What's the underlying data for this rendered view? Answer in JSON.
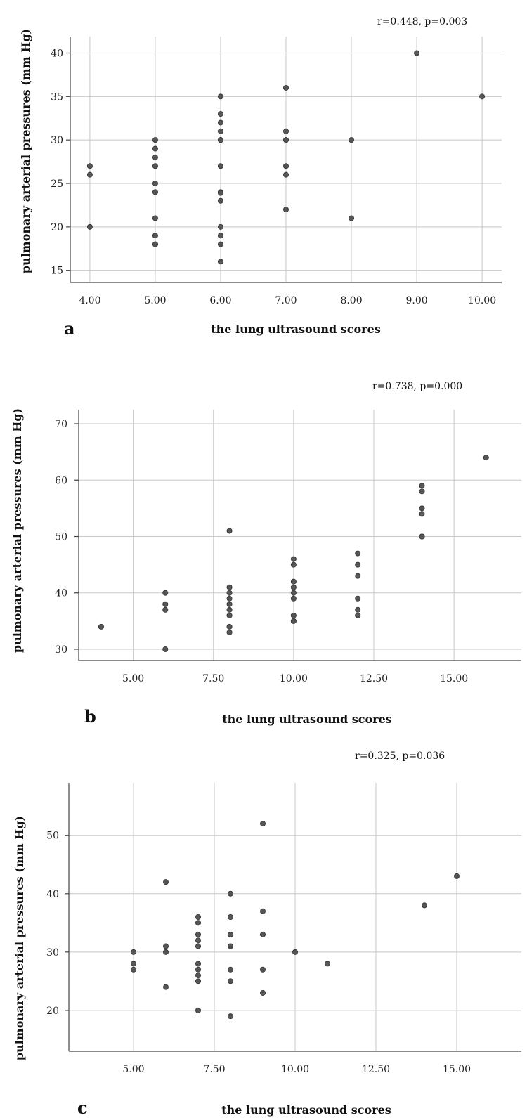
{
  "chart_data": [
    {
      "type": "scatter",
      "panel": "a",
      "annotation": "r=0.448, p=0.003",
      "xlabel": "the lung ultrasound scores",
      "ylabel": "pulmonary arterial pressures (mm Hg)",
      "xlim": [
        3.7,
        10.3
      ],
      "ylim": [
        13.6,
        41.9
      ],
      "xticks": [
        4,
        5,
        6,
        7,
        8,
        9,
        10
      ],
      "xtick_labels": [
        "4.00",
        "5.00",
        "6.00",
        "7.00",
        "8.00",
        "9.00",
        "10.00"
      ],
      "yticks": [
        15,
        20,
        25,
        30,
        35,
        40
      ],
      "ytick_labels": [
        "15",
        "20",
        "25",
        "30",
        "35",
        "40"
      ],
      "grid": true,
      "x": [
        4,
        4,
        4,
        5,
        5,
        5,
        5,
        5,
        5,
        5,
        5,
        5,
        5,
        6,
        6,
        6,
        6,
        6,
        6,
        6,
        6,
        6,
        6,
        6,
        6,
        6,
        6,
        7,
        7,
        7,
        7,
        7,
        7,
        7,
        8,
        8,
        9,
        10
      ],
      "y": [
        27,
        26,
        20,
        30,
        29,
        28,
        27,
        25,
        24,
        21,
        19,
        18,
        18,
        35,
        33,
        32,
        31,
        30,
        27,
        24,
        23.9,
        23,
        20,
        19,
        18,
        16,
        30,
        36,
        31,
        30,
        27,
        26,
        22,
        30,
        30,
        21,
        40,
        35
      ]
    },
    {
      "type": "scatter",
      "panel": "b",
      "annotation": "r=0.738, p=0.000",
      "xlabel": "the lung ultrasound scores",
      "ylabel": "pulmonary arterial pressures (mm Hg)",
      "xlim": [
        3.3,
        17.1
      ],
      "ylim": [
        28.0,
        72.5
      ],
      "xticks": [
        5,
        7.5,
        10,
        12.5,
        15
      ],
      "xtick_labels": [
        "5.00",
        "7.50",
        "10.00",
        "12.50",
        "15.00"
      ],
      "yticks": [
        30,
        40,
        50,
        60,
        70
      ],
      "ytick_labels": [
        "30",
        "40",
        "50",
        "60",
        "70"
      ],
      "grid": true,
      "x": [
        4,
        6,
        6,
        6,
        6,
        8,
        8,
        8,
        8,
        8,
        8,
        8,
        8,
        8,
        10,
        10,
        10,
        10,
        10,
        10,
        10,
        10,
        10,
        12,
        12,
        12,
        12,
        12,
        12,
        14,
        14,
        14,
        14,
        14,
        14,
        16
      ],
      "y": [
        34,
        40,
        38,
        37,
        30,
        51,
        41,
        40,
        39,
        38,
        37,
        36,
        34,
        33,
        46,
        45,
        42,
        41,
        40,
        39,
        36,
        35,
        35,
        47,
        45,
        43,
        39,
        37,
        36,
        59,
        58,
        55,
        54,
        50,
        50,
        64
      ]
    },
    {
      "type": "scatter",
      "panel": "c",
      "annotation": "r=0.325, p=0.036",
      "xlabel": "the lung ultrasound scores",
      "ylabel": "pulmonary arterial pressures (mm Hg)",
      "xlim": [
        3.0,
        17.0
      ],
      "ylim": [
        13.0,
        59.0
      ],
      "xticks": [
        5,
        7.5,
        10,
        12.5,
        15
      ],
      "xtick_labels": [
        "5.00",
        "7.50",
        "10.00",
        "12.50",
        "15.00"
      ],
      "yticks": [
        20,
        30,
        40,
        50
      ],
      "ytick_labels": [
        "20",
        "30",
        "40",
        "50"
      ],
      "grid": true,
      "x": [
        5,
        5,
        5,
        6,
        6,
        6,
        6,
        7,
        7,
        7,
        7,
        7,
        7,
        7,
        7,
        7,
        7,
        8,
        8,
        8,
        8,
        8,
        8,
        8,
        9,
        9,
        9,
        9,
        9,
        10,
        11,
        14,
        15
      ],
      "y": [
        30,
        28,
        27,
        42,
        31,
        30,
        24,
        36,
        35,
        33,
        32,
        31,
        28,
        27,
        26,
        25,
        20,
        40,
        36,
        33,
        31,
        27,
        25,
        19,
        52,
        37,
        33,
        27,
        23,
        30,
        28,
        38,
        43
      ]
    }
  ]
}
